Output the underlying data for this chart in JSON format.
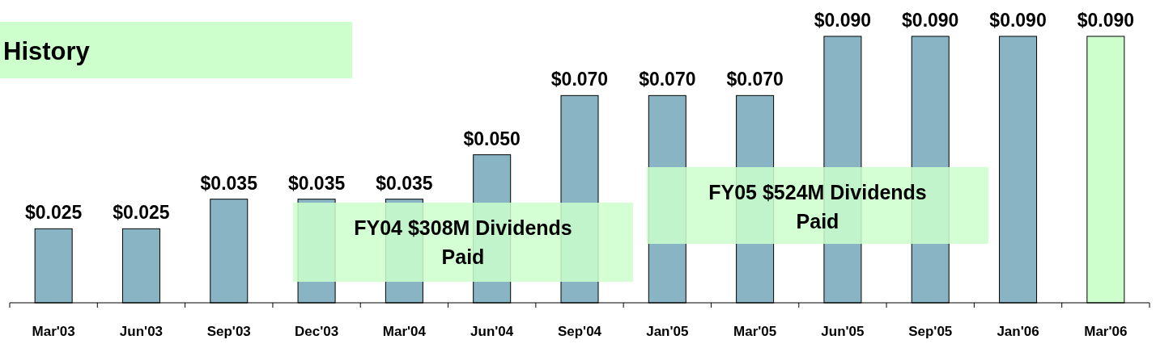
{
  "chart_data": {
    "type": "bar",
    "title": "History",
    "categories": [
      "Mar'03",
      "Jun'03",
      "Sep'03",
      "Dec'03",
      "Mar'04",
      "Jun'04",
      "Sep'04",
      "Jan'05",
      "Mar'05",
      "Jun'05",
      "Sep'05",
      "Jan'06",
      "Mar'06"
    ],
    "values": [
      0.025,
      0.025,
      0.035,
      0.035,
      0.035,
      0.05,
      0.07,
      0.07,
      0.07,
      0.09,
      0.09,
      0.09,
      0.09
    ],
    "colors": [
      "#88b4c4",
      "#88b4c4",
      "#88b4c4",
      "#88b4c4",
      "#88b4c4",
      "#88b4c4",
      "#88b4c4",
      "#88b4c4",
      "#88b4c4",
      "#88b4c4",
      "#88b4c4",
      "#88b4c4",
      "#ccffcc"
    ],
    "value_labels": [
      "$0.025",
      "$0.025",
      "$0.035",
      "$0.035",
      "$0.035",
      "$0.050",
      "$0.070",
      "$0.070",
      "$0.070",
      "$0.090",
      "$0.090",
      "$0.090",
      "$0.090"
    ],
    "annotations": [
      "FY04 $308M Dividends Paid",
      "FY05 $524M Dividends Paid"
    ]
  }
}
